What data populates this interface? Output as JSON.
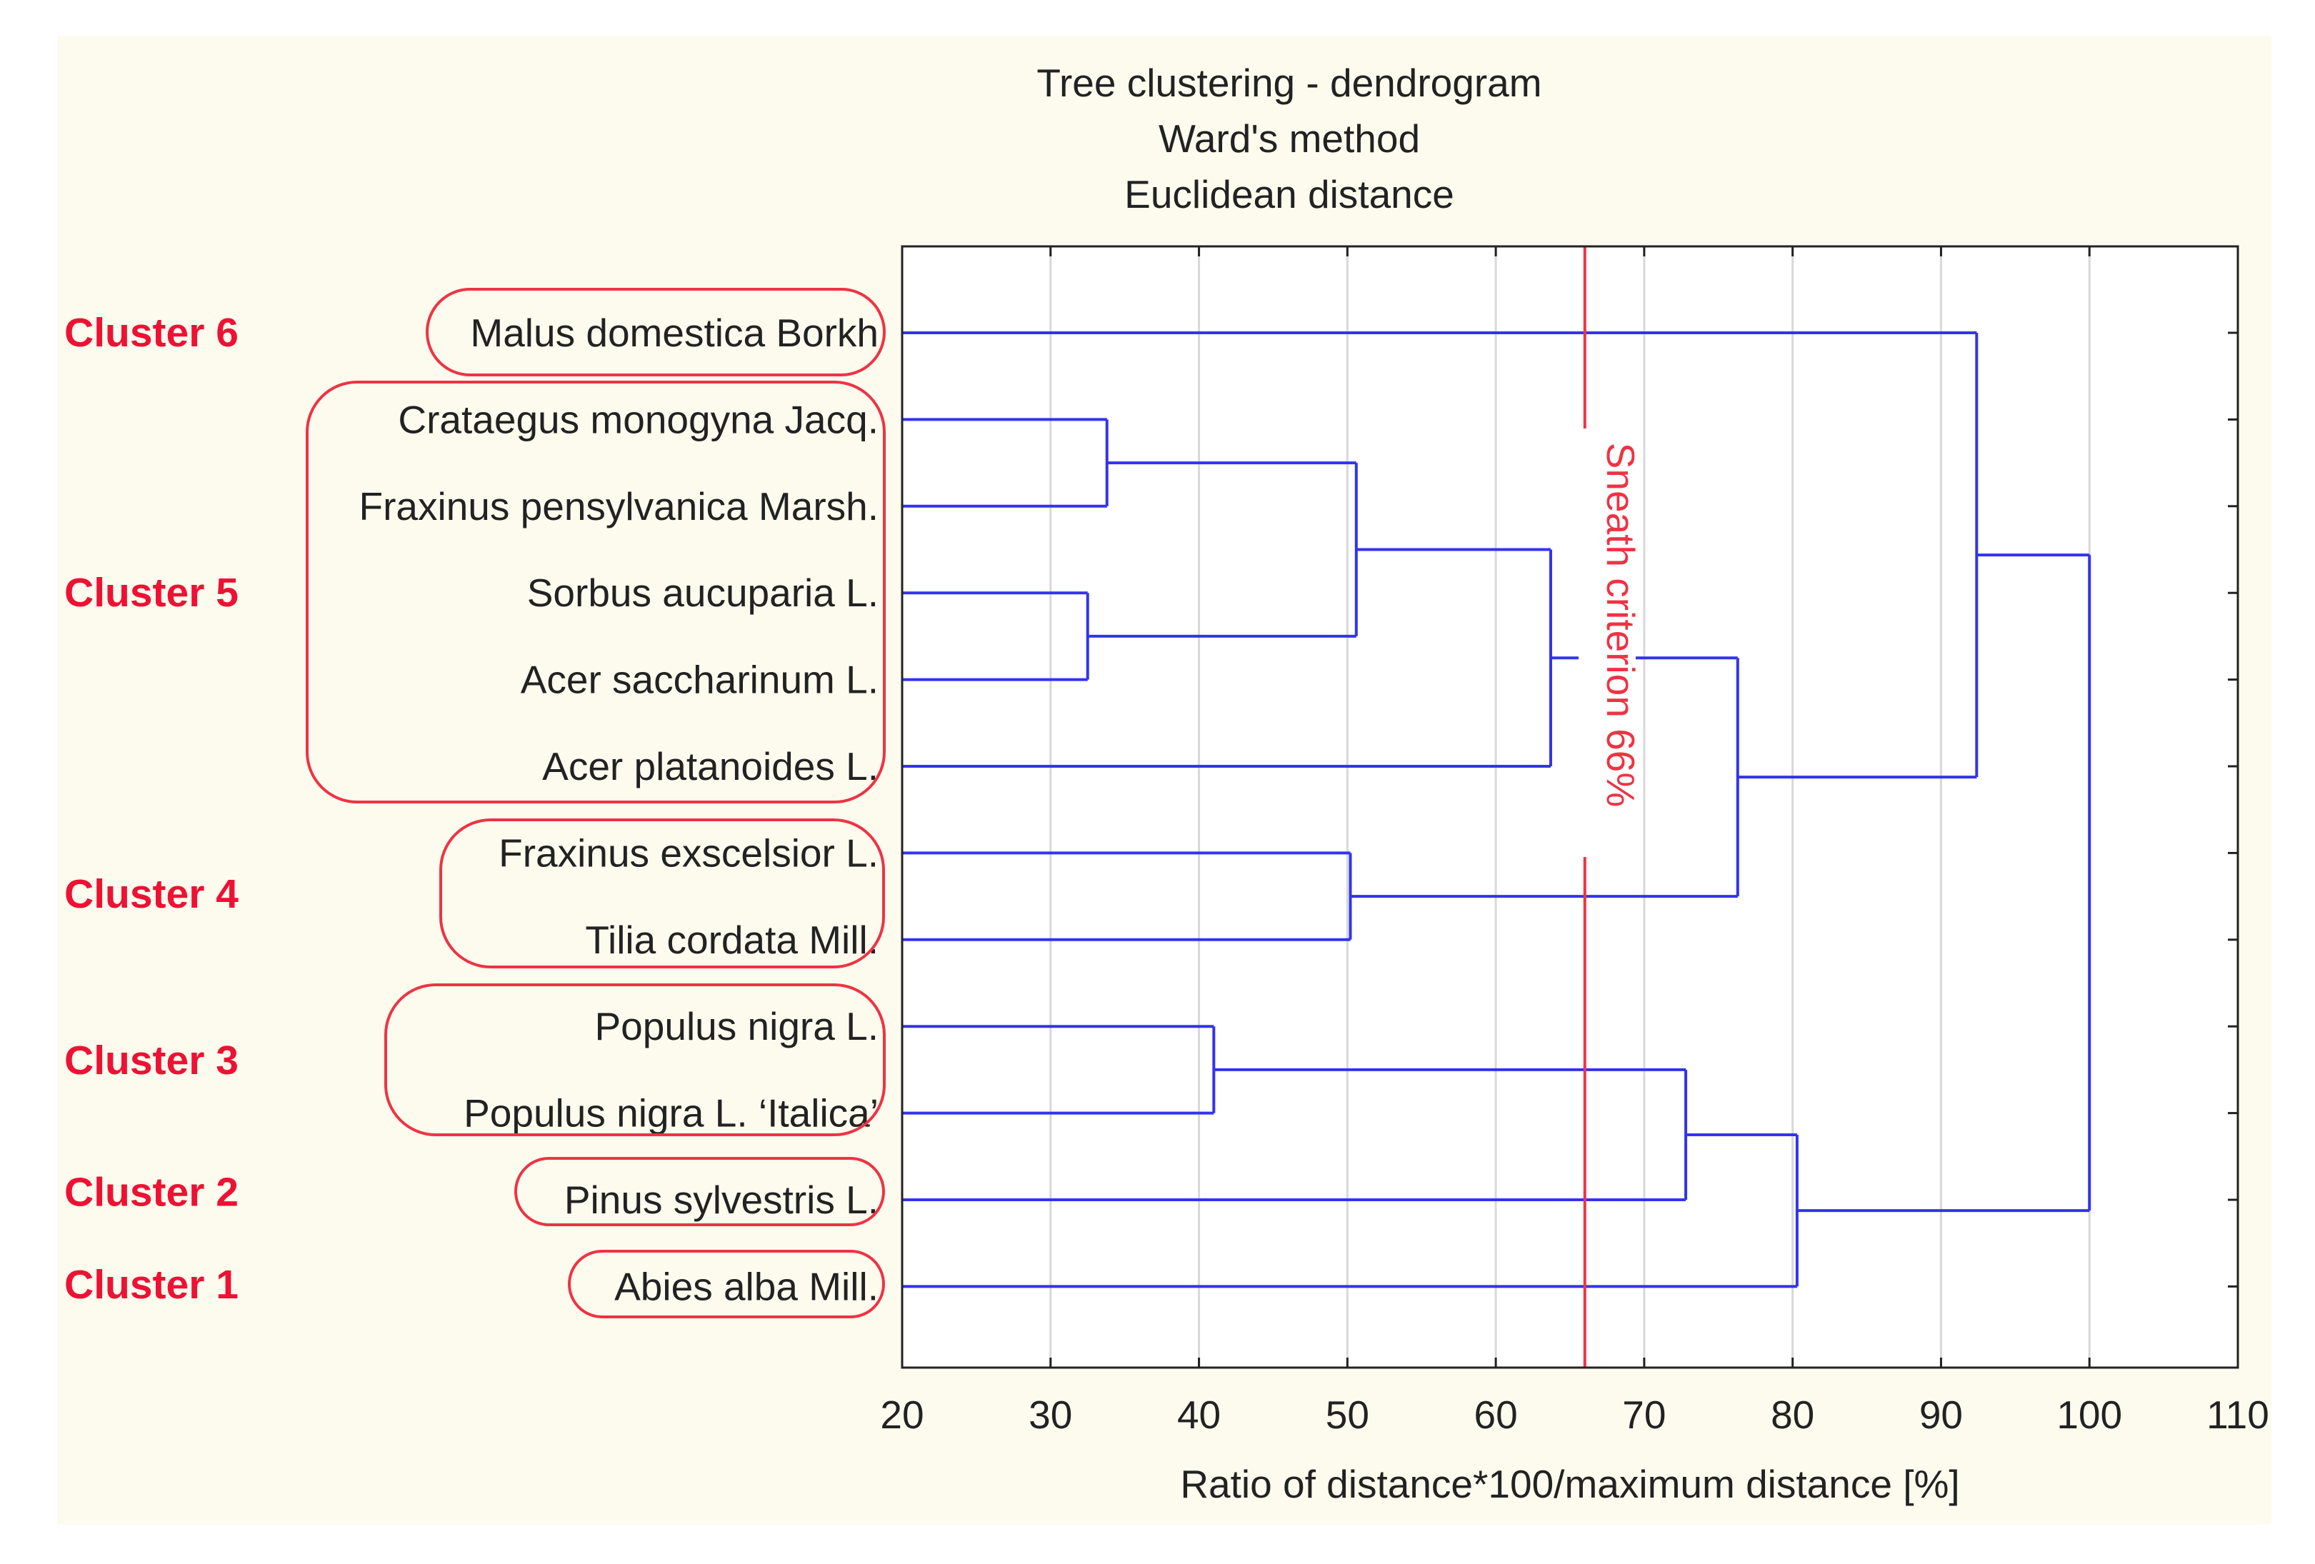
{
  "chart_data": {
    "type": "dendrogram",
    "title_lines": [
      "Tree clustering - dendrogram",
      "Ward's method",
      "Euclidean distance"
    ],
    "xlabel": "Ratio of distance*100/maximum distance [%]",
    "xlim": [
      20,
      110
    ],
    "xticks": [
      20,
      30,
      40,
      50,
      60,
      70,
      80,
      90,
      100,
      110
    ],
    "grid": true,
    "leaves": [
      "Malus domestica Borkh",
      "Crataegus monogyna Jacq.",
      "Fraxinus pensylvanica Marsh.",
      "Sorbus aucuparia L.",
      "Acer saccharinum L.",
      "Acer platanoides L.",
      "Fraxinus exscelsior L.",
      "Tilia cordata Mill.",
      "Populus nigra L.",
      "Populus nigra L. ‘Italica’",
      "Pinus sylvestris L.",
      "Abies alba Mill."
    ],
    "merges": [
      {
        "a": "L3",
        "b": "L4",
        "height": 32.5
      },
      {
        "a": "L1",
        "b": "L2",
        "height": 33.8
      },
      {
        "a": "L8",
        "b": "L9",
        "height": 41
      },
      {
        "a": "L6",
        "b": "L7",
        "height": 50.2
      },
      {
        "a": "N1",
        "b": "N0",
        "height": 50.6
      },
      {
        "a": "N4",
        "b": "L5",
        "height": 63.7
      },
      {
        "a": "L10",
        "b": "N2",
        "height": 72.8
      },
      {
        "a": "N5",
        "b": "N3",
        "height": 76.3
      },
      {
        "a": "N6",
        "b": "L11",
        "height": 80.3
      },
      {
        "a": "L0",
        "b": "N7",
        "height": 92.4
      },
      {
        "a": "N9",
        "b": "N8",
        "height": 100
      }
    ],
    "cutoff": {
      "value": 66,
      "label": "Sneath criterion  66%"
    },
    "clusters": [
      {
        "label": "Cluster 6",
        "members": [
          0
        ]
      },
      {
        "label": "Cluster 5",
        "members": [
          1,
          2,
          3,
          4,
          5
        ]
      },
      {
        "label": "Cluster 4",
        "members": [
          6,
          7
        ]
      },
      {
        "label": "Cluster 3",
        "members": [
          8,
          9
        ]
      },
      {
        "label": "Cluster 2",
        "members": [
          10
        ]
      },
      {
        "label": "Cluster 1",
        "members": [
          11
        ]
      }
    ],
    "colors": {
      "branch": "#3333ee",
      "cutoff": "#ee3344",
      "cluster_text": "#ee1133",
      "cluster_box": "#ee3344",
      "background": "#fdfbee",
      "plot_bg": "#ffffff",
      "grid": "#d8d8d8",
      "axis": "#222222"
    }
  }
}
